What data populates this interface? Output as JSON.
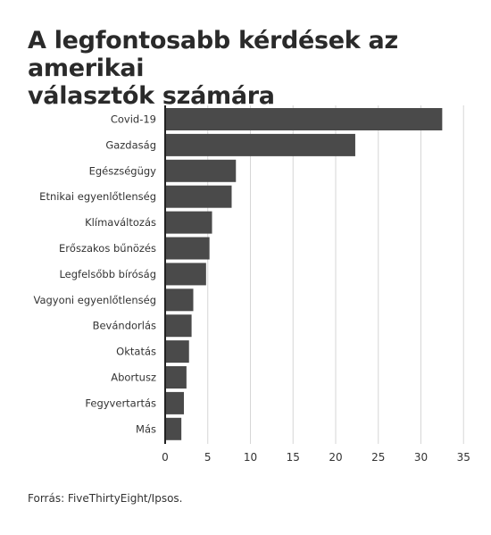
{
  "title_lines": [
    "A legfontosabb kérdések az amerikai",
    "választók számára"
  ],
  "source": "Forrás: FiveThirtyEight/Ipsos.",
  "colors": {
    "bar": "#4a4a4a",
    "grid": "#d6d6d6",
    "axis": "#222222"
  },
  "chart_data": {
    "type": "bar",
    "orientation": "horizontal",
    "categories": [
      "Covid-19",
      "Gazdaság",
      "Egészségügy",
      "Etnikai egyenlőtlenség",
      "Klímaváltozás",
      "Erőszakos bűnözés",
      "Legfelsőbb bíróság",
      "Vagyoni egyenlőtlenség",
      "Bevándorlás",
      "Oktatás",
      "Abortusz",
      "Fegyvertartás",
      "Más"
    ],
    "values": [
      32.5,
      22.3,
      8.3,
      7.8,
      5.5,
      5.2,
      4.8,
      3.3,
      3.1,
      2.8,
      2.5,
      2.2,
      1.9
    ],
    "xlim": [
      0,
      35
    ],
    "xticks": [
      0,
      5,
      10,
      15,
      20,
      25,
      30,
      35
    ],
    "grid": "vertical"
  }
}
